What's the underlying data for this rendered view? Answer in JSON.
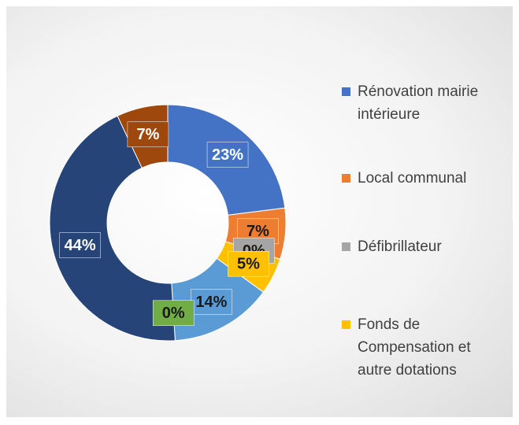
{
  "chart_data": {
    "type": "donut",
    "categories": [
      "Rénovation mairie intérieure",
      "Local communal",
      "Défibrillateur",
      "Fonds de Compensation et autre dotations",
      null,
      null,
      null,
      null
    ],
    "values": [
      23,
      7,
      0,
      5,
      14,
      0,
      44,
      7
    ],
    "value_labels": [
      "23%",
      "7%",
      "0%",
      "5%",
      "14%",
      "0%",
      "44%",
      "7%"
    ],
    "colors": [
      "#4472c4",
      "#ed7d31",
      "#a5a5a5",
      "#ffc000",
      "#5b9bd5",
      "#70ad47",
      "#264478",
      "#9e480e"
    ],
    "legend": "right"
  }
}
